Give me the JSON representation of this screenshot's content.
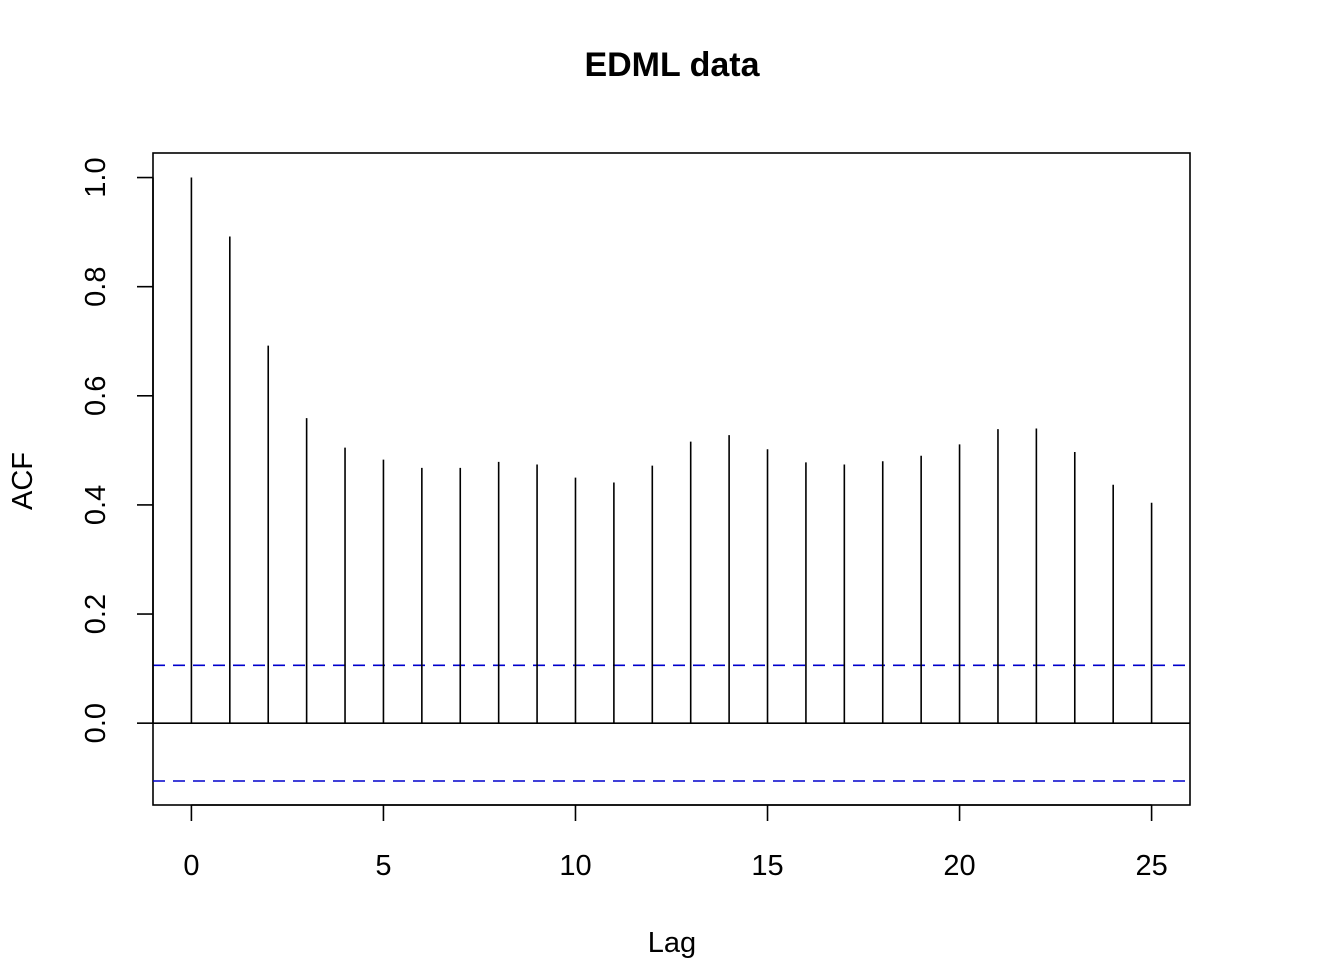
{
  "chart_data": {
    "type": "bar",
    "title": "EDML data",
    "xlabel": "Lag",
    "ylabel": "ACF",
    "x": [
      0,
      1,
      2,
      3,
      4,
      5,
      6,
      7,
      8,
      9,
      10,
      11,
      12,
      13,
      14,
      15,
      16,
      17,
      18,
      19,
      20,
      21,
      22,
      23,
      24,
      25
    ],
    "values": [
      1.0,
      0.892,
      0.692,
      0.559,
      0.505,
      0.483,
      0.468,
      0.468,
      0.479,
      0.474,
      0.45,
      0.441,
      0.472,
      0.516,
      0.528,
      0.502,
      0.478,
      0.474,
      0.48,
      0.49,
      0.511,
      0.539,
      0.54,
      0.497,
      0.437,
      0.404
    ],
    "conf_limit": 0.106,
    "zero_line": 0,
    "xlim": [
      -1,
      26
    ],
    "ylim": [
      -0.15,
      1.045
    ],
    "x_ticks": [
      0,
      5,
      10,
      15,
      20,
      25
    ],
    "x_tick_labels": [
      "0",
      "5",
      "10",
      "15",
      "20",
      "25"
    ],
    "y_ticks": [
      0.0,
      0.2,
      0.4,
      0.6,
      0.8,
      1.0
    ],
    "y_tick_labels": [
      "0.0",
      "0.2",
      "0.4",
      "0.6",
      "0.8",
      "1.0"
    ],
    "bar_color": "#000000",
    "conf_color": "#0000cc",
    "grid": false
  }
}
